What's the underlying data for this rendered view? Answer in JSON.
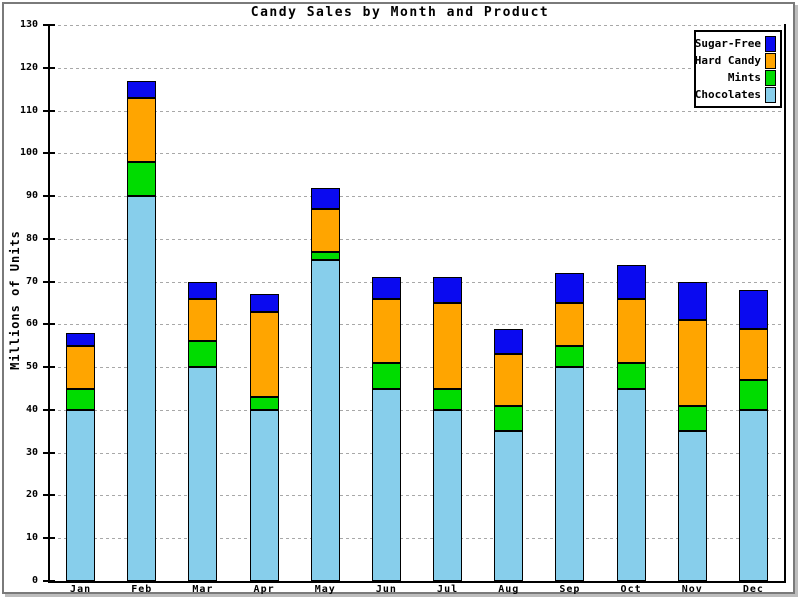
{
  "title": "Candy Sales by Month and Product",
  "y_axis_label": "Millions of Units",
  "legend": {
    "position": "top-right",
    "order": [
      "Sugar-Free",
      "Hard Candy",
      "Mints",
      "Chocolates"
    ]
  },
  "chart_data": {
    "type": "bar",
    "stacked": true,
    "title": "Candy Sales by Month and Product",
    "xlabel": "",
    "ylabel": "Millions of Units",
    "ylim": [
      0,
      130
    ],
    "y_tick_step": 10,
    "grid": "horizontal-dotted",
    "legend_position": "top-right",
    "categories": [
      "Jan",
      "Feb",
      "Mar",
      "Apr",
      "May",
      "Jun",
      "Jul",
      "Aug",
      "Sep",
      "Oct",
      "Nov",
      "Dec"
    ],
    "series": [
      {
        "name": "Chocolates",
        "color": "#87CEEB",
        "values": [
          40,
          90,
          50,
          40,
          75,
          45,
          40,
          35,
          50,
          45,
          35,
          40
        ]
      },
      {
        "name": "Mints",
        "color": "#00DC00",
        "values": [
          5,
          8,
          6,
          3,
          2,
          6,
          5,
          6,
          5,
          6,
          6,
          7
        ]
      },
      {
        "name": "Hard Candy",
        "color": "#FFA500",
        "values": [
          10,
          15,
          10,
          20,
          10,
          15,
          20,
          12,
          10,
          15,
          20,
          12
        ]
      },
      {
        "name": "Sugar-Free",
        "color": "#0A0AF0",
        "values": [
          3,
          4,
          4,
          4,
          5,
          5,
          6,
          6,
          7,
          8,
          9,
          9
        ]
      }
    ],
    "totals": [
      58,
      117,
      70,
      67,
      92,
      71,
      71,
      59,
      72,
      74,
      70,
      68
    ],
    "colors": {
      "axis": "#000000",
      "gridline": "#a8a8a8",
      "background": "#ffffff"
    }
  }
}
